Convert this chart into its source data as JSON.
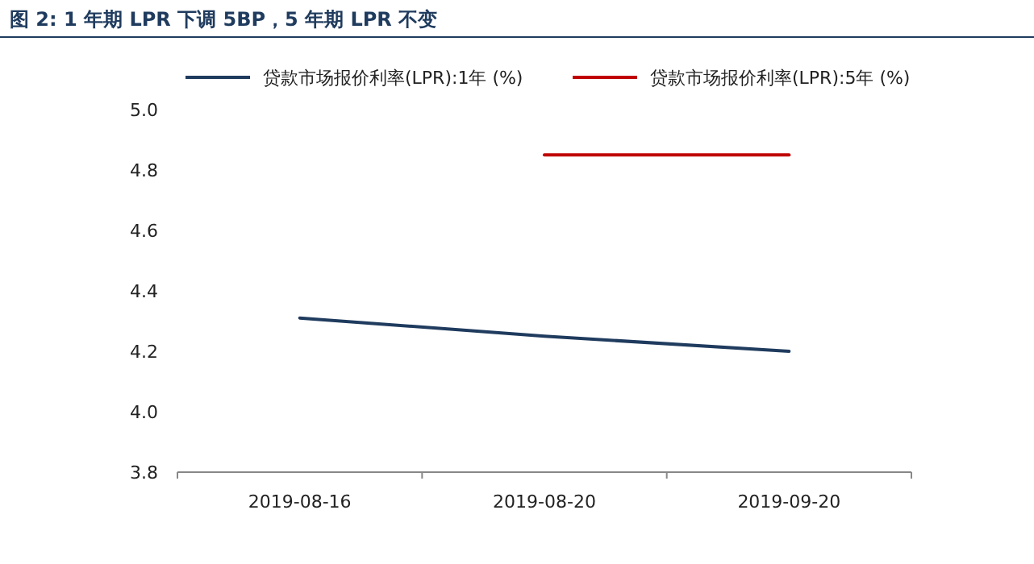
{
  "chart_data": {
    "type": "line",
    "title": "图 2: 1 年期 LPR 下调 5BP，5 年期 LPR 不变",
    "categories": [
      "2019-08-16",
      "2019-08-20",
      "2019-09-20"
    ],
    "series": [
      {
        "name": "贷款市场报价利率(LPR):1年 (%)",
        "color": "#1f3b5e",
        "values": [
          4.31,
          4.25,
          4.2
        ]
      },
      {
        "name": "贷款市场报价利率(LPR):5年 (%)",
        "color": "#c00000",
        "values": [
          null,
          4.85,
          4.85
        ]
      }
    ],
    "ylim": [
      3.8,
      5.0
    ],
    "yticks": [
      3.8,
      {
        "value": 4,
        "label": "4.0"
      },
      4.2,
      4.4,
      4.6,
      4.8,
      {
        "value": 5,
        "label": "5.0"
      }
    ],
    "grid": false,
    "legend": "top",
    "marker": "none",
    "line_style": "solid"
  }
}
